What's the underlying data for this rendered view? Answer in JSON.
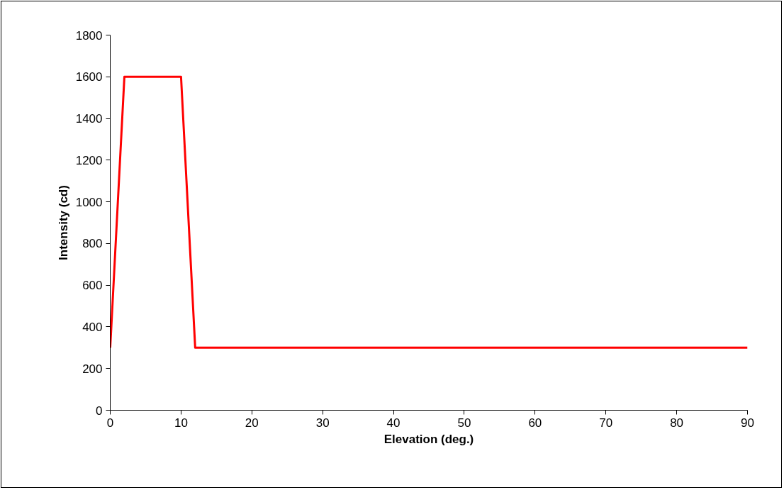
{
  "chart_data": {
    "type": "line",
    "xlabel": "Elevation (deg.)",
    "ylabel": "Intensity (cd)",
    "x": [
      0,
      2,
      10,
      12,
      90
    ],
    "series": [
      {
        "color": "#ff0000",
        "values": [
          300,
          1600,
          1600,
          300,
          300
        ]
      }
    ],
    "xlim": [
      0,
      90
    ],
    "xticks": [
      0,
      10,
      20,
      30,
      40,
      50,
      60,
      70,
      80,
      90
    ],
    "ylim": [
      0,
      1800
    ],
    "yticks": [
      0,
      200,
      400,
      600,
      800,
      1000,
      1200,
      1400,
      1600,
      1800
    ],
    "grid": false,
    "marker": "none",
    "line_style": "solid"
  }
}
